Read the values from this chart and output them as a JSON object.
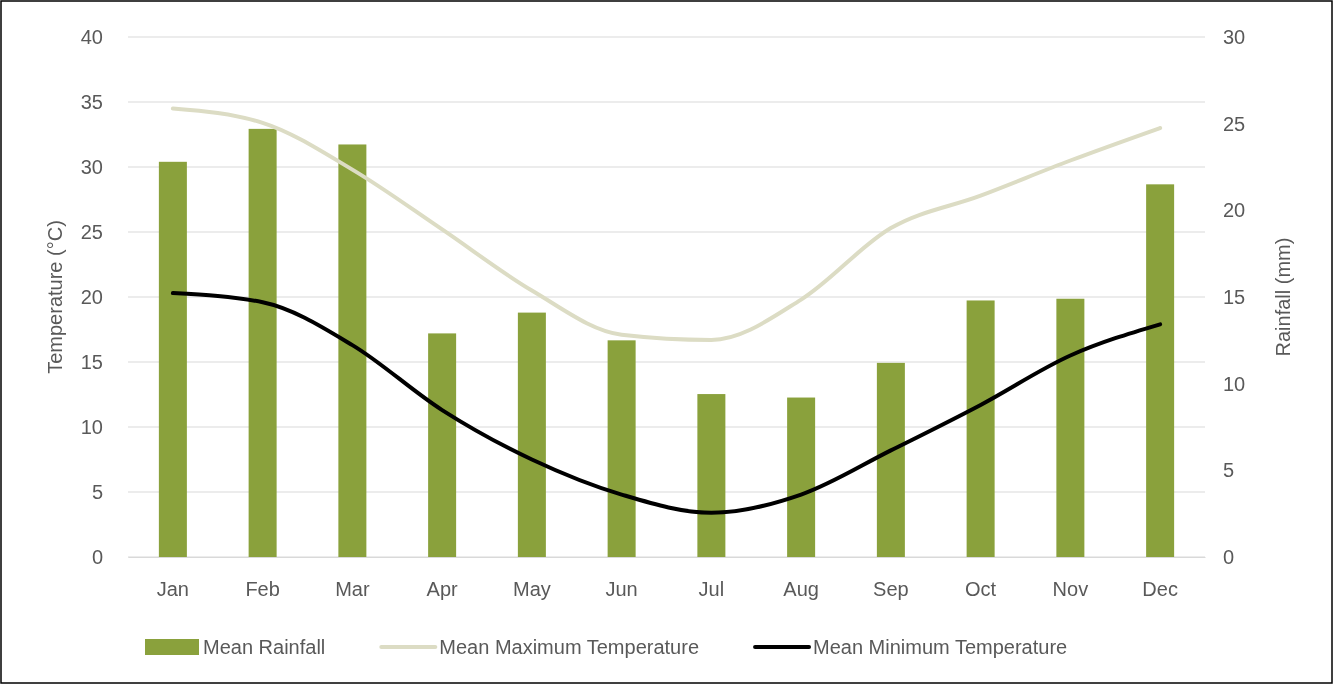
{
  "chart_data": {
    "type": "bar",
    "categories": [
      "Jan",
      "Feb",
      "Mar",
      "Apr",
      "May",
      "Jun",
      "Jul",
      "Aug",
      "Sep",
      "Oct",
      "Nov",
      "Dec"
    ],
    "ylabel": "Temperature (°C)",
    "y2label": "Rainfall (mm)",
    "ylim": [
      0,
      40
    ],
    "yticks": [
      0,
      5,
      10,
      15,
      20,
      25,
      30,
      35,
      40
    ],
    "y2lim": [
      0,
      30
    ],
    "y2ticks": [
      0,
      5,
      10,
      15,
      20,
      25,
      30
    ],
    "grid": "y",
    "legend": "bottom",
    "marker": "none",
    "line_style": "solid",
    "series": [
      {
        "name": "Mean Rainfall",
        "axis": "y2",
        "color": "#8aa13c",
        "values": [
          22.8,
          24.7,
          23.8,
          12.9,
          14.1,
          12.5,
          9.4,
          9.2,
          11.2,
          14.8,
          14.9,
          21.5
        ]
      },
      {
        "name": "Mean Maximum Temperature",
        "type": "line",
        "color": "#dcdcc4",
        "values": [
          34.5,
          33.4,
          29.8,
          25.2,
          20.5,
          17.1,
          16.7,
          19.8,
          25.3,
          27.8,
          30.5,
          33.0
        ]
      },
      {
        "name": "Mean Minimum Temperature",
        "type": "line",
        "color": "#000000",
        "values": [
          20.3,
          19.6,
          16.3,
          11.3,
          7.5,
          4.8,
          3.4,
          4.8,
          8.2,
          11.7,
          15.5,
          17.9
        ]
      }
    ]
  }
}
